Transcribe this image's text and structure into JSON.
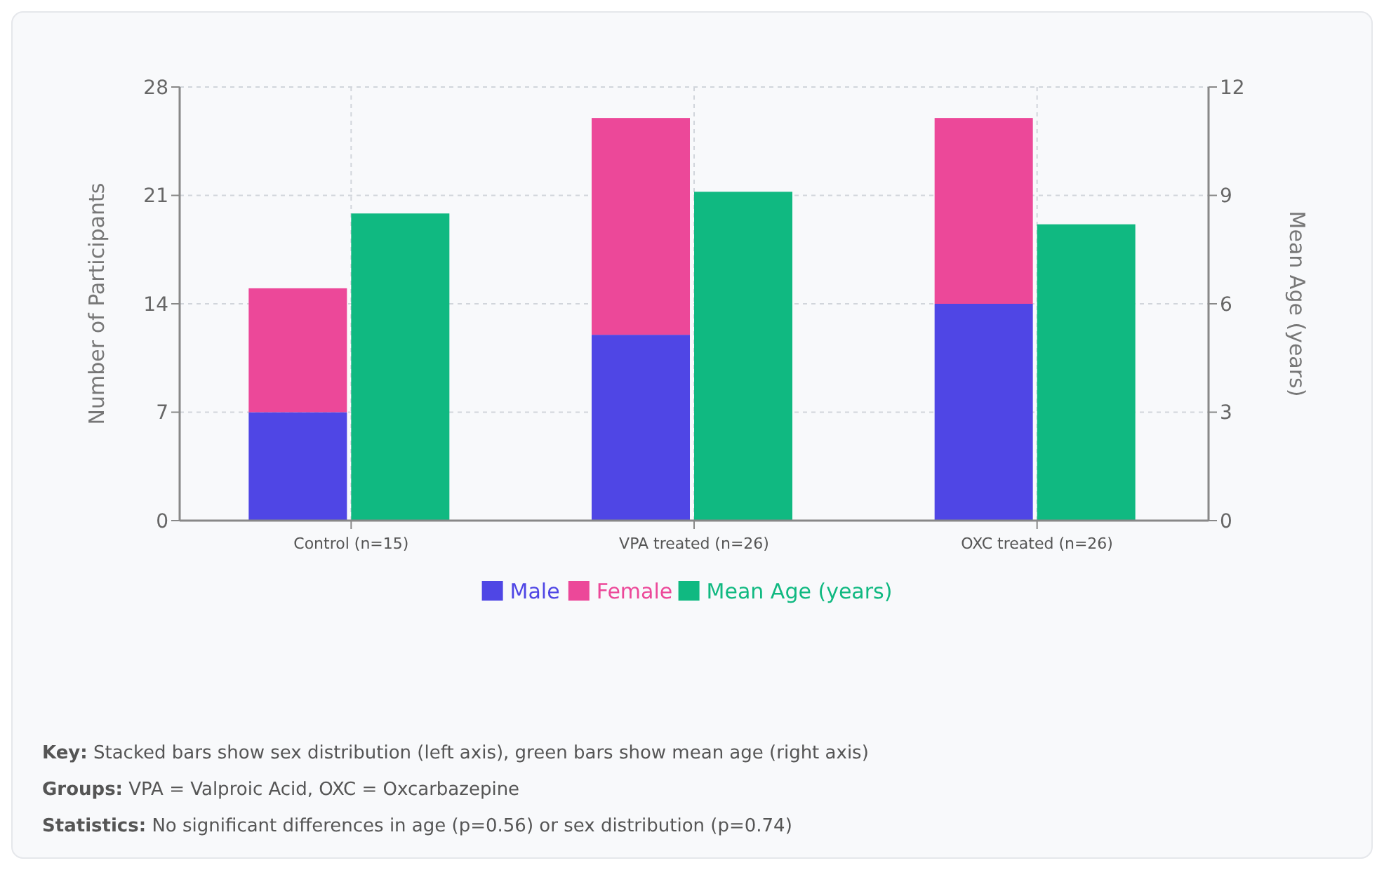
{
  "chart_data": {
    "type": "bar",
    "ylabel": "Number of Participants",
    "y2label": "Mean Age (years)",
    "categories": [
      "Control (n=15)",
      "VPA treated (n=26)",
      "OXC treated (n=26)"
    ],
    "stacked": true,
    "series": [
      {
        "name": "Male",
        "color": "#4f46e5",
        "values": [
          7,
          12,
          14
        ]
      },
      {
        "name": "Female",
        "color": "#ec4899",
        "values": [
          8,
          14,
          12
        ]
      },
      {
        "name": "Mean Age (years)",
        "color": "#10b981",
        "axis": "y2",
        "values": [
          8.5,
          9.1,
          8.2
        ]
      }
    ],
    "ylim": [
      0,
      28
    ],
    "yticks": [
      0,
      7,
      14,
      21,
      28
    ],
    "y2lim": [
      0,
      12
    ],
    "y2ticks": [
      0,
      3,
      6,
      9,
      12
    ],
    "grid": true,
    "legend": "bottom",
    "annotations": [
      "Key: Stacked bars show sex distribution (left axis), green bars show mean age (right axis)",
      "Groups: VPA = Valproic Acid, OXC = Oxcarbazepine",
      "Statistics: No significant differences in age (p=0.56) or sex distribution (p=0.74)"
    ]
  }
}
